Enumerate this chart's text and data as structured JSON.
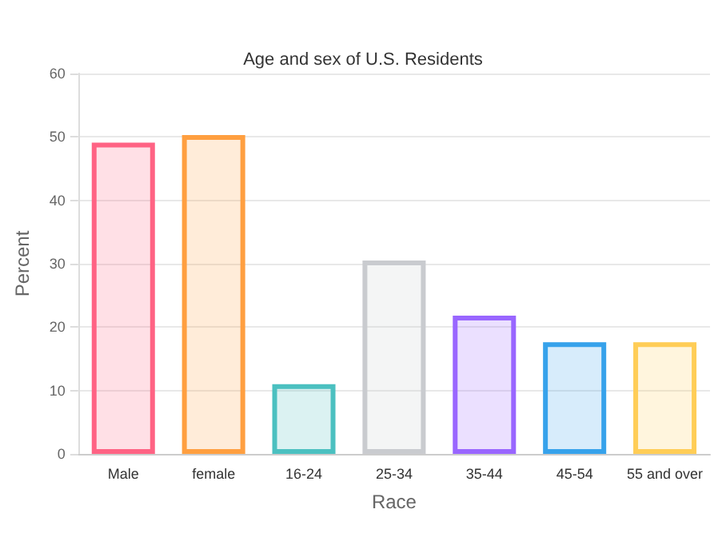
{
  "chart_data": {
    "type": "bar",
    "title": "Age and sex of U.S. Residents",
    "xlabel": "Race",
    "ylabel": "Percent",
    "categories": [
      "Male",
      "female",
      "16-24",
      "25-34",
      "35-44",
      "45-54",
      "55 and over"
    ],
    "values": [
      49.1,
      50.3,
      11.0,
      30.5,
      21.8,
      17.6,
      17.6
    ],
    "colors": [
      "#ff6384",
      "#ff9f40",
      "#4bc0c0",
      "#c9cbcf",
      "#9966ff",
      "#36a2eb",
      "#ffcd56"
    ],
    "ylim": [
      0,
      60
    ],
    "yticks": [
      0,
      10,
      20,
      30,
      40,
      50,
      60
    ],
    "grid": "y"
  }
}
